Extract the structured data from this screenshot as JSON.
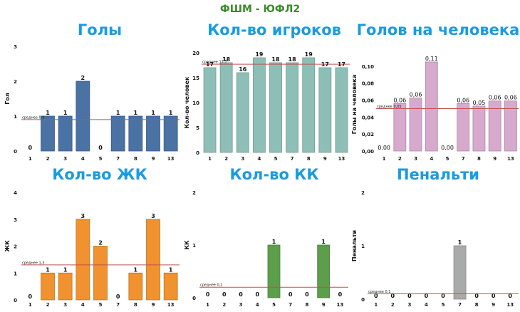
{
  "main_title": "ФШМ - ЮФЛ2",
  "colors": {
    "main_title": "#3a8a2a",
    "chart_title": "#1a9be0",
    "avg_line": "#c0504d"
  },
  "chart_data": [
    {
      "id": "goals",
      "type": "bar",
      "title": "Голы",
      "xlabel": "",
      "ylabel": "Гол",
      "categories": [
        "1",
        "2",
        "3",
        "4",
        "5",
        "7",
        "8",
        "9",
        "13"
      ],
      "values": [
        0,
        1,
        1,
        2,
        0,
        1,
        1,
        1,
        1
      ],
      "value_labels": [
        "0",
        "1",
        "1",
        "2",
        "0",
        "1",
        "1",
        "1",
        "1"
      ],
      "ylim": [
        0,
        3
      ],
      "yticks": [
        0,
        1,
        2,
        3
      ],
      "ytick_labels": [
        "0",
        "1",
        "2",
        "3"
      ],
      "average": 0.9,
      "average_label": "среднее 0,9",
      "bar_color": "#4a72a4",
      "grid": false,
      "legend": "none"
    },
    {
      "id": "players",
      "type": "bar",
      "title": "Кол-во игроков",
      "xlabel": "",
      "ylabel": "Кол-во человек",
      "categories": [
        "1",
        "2",
        "3",
        "4",
        "5",
        "7",
        "8",
        "9",
        "13"
      ],
      "values": [
        17,
        18,
        16,
        19,
        18,
        18,
        19,
        17,
        17
      ],
      "value_labels": [
        "17",
        "18",
        "16",
        "19",
        "18",
        "18",
        "19",
        "17",
        "17"
      ],
      "ylim": [
        0,
        20
      ],
      "yticks": [
        0,
        5,
        10,
        15,
        20
      ],
      "ytick_labels": [
        "0",
        "5",
        "10",
        "15",
        "20"
      ],
      "average": 17.7,
      "average_label": "среднее 17,7",
      "bar_color": "#8dbfb6",
      "grid": false,
      "legend": "none"
    },
    {
      "id": "goals-per-player",
      "type": "bar",
      "title": "Голов на человека",
      "xlabel": "",
      "ylabel": "Голы на человека",
      "categories": [
        "1",
        "2",
        "3",
        "4",
        "5",
        "7",
        "8",
        "9",
        "13"
      ],
      "values": [
        0,
        0.056,
        0.0625,
        0.105,
        0,
        0.056,
        0.053,
        0.059,
        0.059
      ],
      "value_labels": [
        "0,00",
        "0,06",
        "0,06",
        "0,11",
        "0,00",
        "0,06",
        "0,05",
        "0,06",
        "0,06"
      ],
      "ylim": [
        0,
        0.11
      ],
      "yticks": [
        0,
        0.02,
        0.04,
        0.06,
        0.08,
        0.1
      ],
      "ytick_labels": [
        "0,00",
        "0,02",
        "0,04",
        "0,06",
        "0,08",
        "0,10"
      ],
      "average": 0.05,
      "average_label": "среднее 0,05",
      "bar_color": "#d7a9cc",
      "grid": false,
      "legend": "none"
    },
    {
      "id": "yellow-cards",
      "type": "bar",
      "title": "Кол-во ЖК",
      "xlabel": "",
      "ylabel": "ЖК",
      "categories": [
        "1",
        "2",
        "3",
        "4",
        "5",
        "7",
        "8",
        "9",
        "13"
      ],
      "values": [
        0,
        1,
        1,
        3,
        2,
        0,
        1,
        3,
        1
      ],
      "value_labels": [
        "0",
        "1",
        "1",
        "3",
        "2",
        "0",
        "1",
        "3",
        "1"
      ],
      "ylim": [
        0,
        4
      ],
      "yticks": [
        0,
        1,
        2,
        3,
        4
      ],
      "ytick_labels": [
        "0",
        "1",
        "2",
        "3",
        "4"
      ],
      "average": 1.3,
      "average_label": "среднее 1,3",
      "bar_color": "#f0922f",
      "grid": false,
      "legend": "none"
    },
    {
      "id": "red-cards",
      "type": "bar",
      "title": "Кол-во КК",
      "xlabel": "",
      "ylabel": "КК",
      "categories": [
        "1",
        "2",
        "3",
        "4",
        "5",
        "7",
        "8",
        "9",
        "13"
      ],
      "values": [
        0,
        0,
        0,
        0,
        1,
        0,
        0,
        1,
        0
      ],
      "value_labels": [
        "0",
        "0",
        "0",
        "0",
        "1",
        "0",
        "0",
        "1",
        "0"
      ],
      "ylim": [
        0,
        2
      ],
      "yticks": [
        0,
        1,
        2
      ],
      "ytick_labels": [
        "0",
        "1",
        "2"
      ],
      "average": 0.2,
      "average_label": "среднее 0,2",
      "bar_color": "#5c9e4a",
      "grid": false,
      "legend": "none"
    },
    {
      "id": "penalties",
      "type": "bar",
      "title": "Пенальти",
      "xlabel": "",
      "ylabel": "Пенальти",
      "categories": [
        "1",
        "2",
        "3",
        "4",
        "5",
        "7",
        "8",
        "9",
        "13"
      ],
      "values": [
        0,
        0,
        0,
        0,
        0,
        1,
        0,
        0,
        0
      ],
      "value_labels": [
        "0",
        "0",
        "0",
        "0",
        "0",
        "1",
        "0",
        "0",
        "0"
      ],
      "ylim": [
        0,
        2
      ],
      "yticks": [
        0,
        1,
        2
      ],
      "ytick_labels": [
        "0",
        "1",
        "2"
      ],
      "average": 0.1,
      "average_label": "среднее 0,1",
      "bar_color": "#a9abaa",
      "grid": false,
      "legend": "none"
    }
  ]
}
